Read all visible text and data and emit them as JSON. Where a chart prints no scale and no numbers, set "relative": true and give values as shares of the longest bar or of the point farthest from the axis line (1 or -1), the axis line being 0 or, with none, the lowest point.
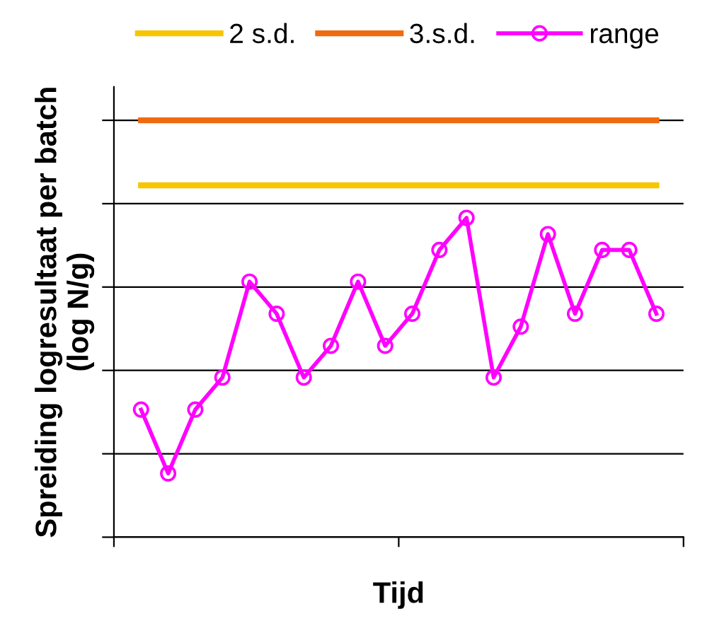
{
  "chart_data": {
    "type": "line",
    "relative": true,
    "xlabel": "Tijd",
    "ylabel": "Spreiding logresultaat per batch\n(log N/g)",
    "categories": [
      null,
      null,
      null,
      null,
      null,
      null,
      null,
      null,
      null,
      null,
      null,
      null,
      null,
      null,
      null,
      null,
      null,
      null,
      null,
      null
    ],
    "series": [
      {
        "name": "2 s.d.",
        "color": "#f7c600",
        "marker": "none",
        "values": [
          0.844,
          0.844,
          0.844,
          0.844,
          0.844,
          0.844,
          0.844,
          0.844,
          0.844,
          0.844,
          0.844,
          0.844,
          0.844,
          0.844,
          0.844,
          0.844,
          0.844,
          0.844,
          0.844,
          0.844
        ]
      },
      {
        "name": "3.s.d.",
        "color": "#f06a10",
        "marker": "none",
        "values": [
          1,
          1,
          1,
          1,
          1,
          1,
          1,
          1,
          1,
          1,
          1,
          1,
          1,
          1,
          1,
          1,
          1,
          1,
          1,
          1
        ]
      },
      {
        "name": "range",
        "color": "#ff00ff",
        "marker": "circle",
        "values": [
          0.306,
          0.153,
          0.306,
          0.383,
          0.613,
          0.536,
          0.383,
          0.459,
          0.613,
          0.459,
          0.536,
          0.689,
          0.766,
          0.383,
          0.505,
          0.727,
          0.536,
          0.689,
          0.689,
          0.536
        ]
      }
    ],
    "grid": "y",
    "legend": "top"
  }
}
